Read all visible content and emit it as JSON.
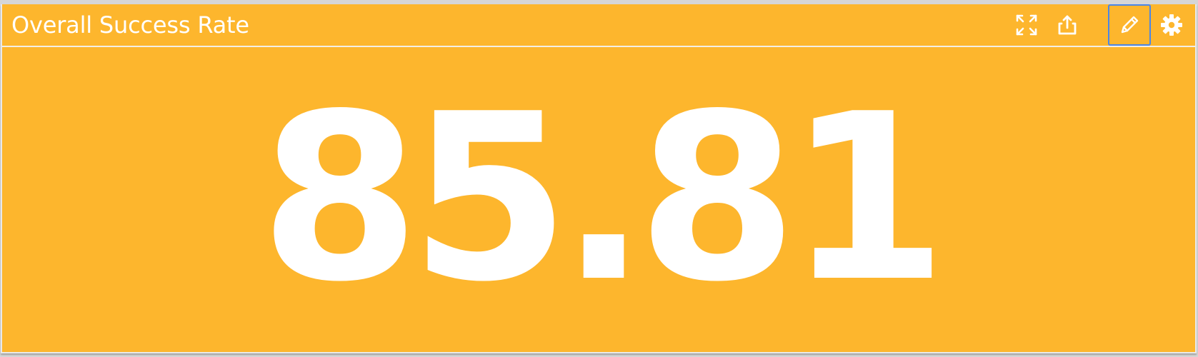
{
  "widget": {
    "title": "Overall Success Rate",
    "value": "85.81"
  },
  "toolbar": {
    "items": [
      {
        "icon": "expand-icon",
        "label": "Expand"
      },
      {
        "icon": "share-icon",
        "label": "Share"
      },
      {
        "icon": "pencil-icon",
        "label": "Edit",
        "active": true
      },
      {
        "icon": "gear-icon",
        "label": "Settings"
      }
    ]
  },
  "colors": {
    "background": "#fdb62d",
    "text": "#ffffff",
    "active_outline": "#4a86e8"
  }
}
